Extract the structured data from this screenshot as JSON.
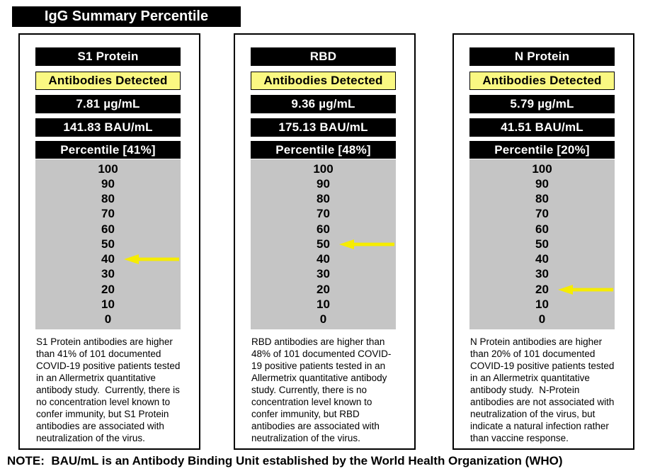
{
  "title": "IgG Summary Percentile",
  "note": "NOTE:  BAU/mL is an Antibody Binding Unit established by the World Health Organization (WHO)",
  "scale_labels": [
    "100",
    "90",
    "80",
    "70",
    "60",
    "50",
    "40",
    "30",
    "20",
    "10",
    "0"
  ],
  "colors": {
    "bar_background": "#000000",
    "bar_text": "#ffffff",
    "detected_banner": "#faf882",
    "scale_background": "#c5c5c5",
    "arrow": "#f6ec00"
  },
  "panels": [
    {
      "name": "S1 Protein",
      "status": "Antibodies Detected",
      "concentration": "7.81 µg/mL",
      "bau": "141.83 BAU/mL",
      "percentile_label": "Percentile [41%]",
      "percentile_value": 41,
      "arrow_at": "40",
      "description": "S1 Protein antibodies are higher than 41% of 101 documented COVID-19 positive patients tested in an Allermetrix quantitative antibody study.  Currently, there is no concentration level known to confer immunity, but S1 Protein antibodies are associated with neutralization of the virus."
    },
    {
      "name": "RBD",
      "status": "Antibodies Detected",
      "concentration": "9.36 µg/mL",
      "bau": "175.13 BAU/mL",
      "percentile_label": "Percentile [48%]",
      "percentile_value": 48,
      "arrow_at": "50",
      "description": "RBD antibodies are higher than 48% of 101 documented COVID-19 positive patients tested in an Allermetrix quantitative antibody study. Currently, there is no concentration level known to confer immunity, but RBD antibodies are associated with neutralization of the virus."
    },
    {
      "name": "N Protein",
      "status": "Antibodies Detected",
      "concentration": "5.79 µg/mL",
      "bau": "41.51 BAU/mL",
      "percentile_label": "Percentile [20%]",
      "percentile_value": 20,
      "arrow_at": "20",
      "description": "N Protein antibodies are higher than 20% of 101 documented COVID-19 positive patients tested in an Allermetrix quantitative antibody study.  N-Protein antibodies are not associated with neutralization of the virus, but indicate a natural infection rather than vaccine response."
    }
  ],
  "chart_data": {
    "type": "table",
    "title": "IgG Summary Percentile",
    "categories": [
      "S1 Protein",
      "RBD",
      "N Protein"
    ],
    "series": [
      {
        "name": "Concentration (µg/mL)",
        "values": [
          7.81,
          9.36,
          5.79
        ]
      },
      {
        "name": "BAU/mL",
        "values": [
          141.83,
          175.13,
          41.51
        ]
      },
      {
        "name": "Percentile (%)",
        "values": [
          41,
          48,
          20
        ]
      }
    ],
    "scale_axis": {
      "min": 0,
      "max": 100,
      "ticks": [
        100,
        90,
        80,
        70,
        60,
        50,
        40,
        30,
        20,
        10,
        0
      ]
    },
    "arrow_marker_positions": [
      40,
      50,
      20
    ],
    "status_all": "Antibodies Detected"
  }
}
